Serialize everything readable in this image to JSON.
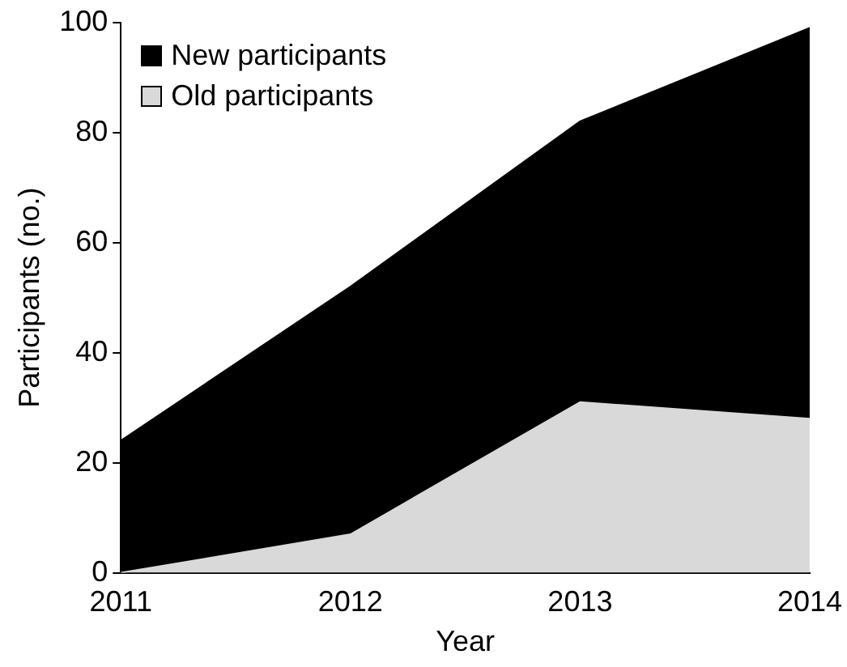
{
  "chart_data": {
    "type": "area",
    "stacked": true,
    "xlabel": "Year",
    "ylabel": "Participants (no.)",
    "categories": [
      "2011",
      "2012",
      "2013",
      "2014"
    ],
    "series": [
      {
        "name": "Old participants",
        "color": "#d9d9d9",
        "values": [
          0,
          7,
          31,
          28
        ]
      },
      {
        "name": "New participants",
        "color": "#000000",
        "values": [
          24,
          45,
          51,
          71
        ]
      }
    ],
    "ylim": [
      0,
      100
    ],
    "yticks": [
      0,
      20,
      40,
      60,
      80,
      100
    ],
    "grid": false,
    "legend": "top left"
  }
}
